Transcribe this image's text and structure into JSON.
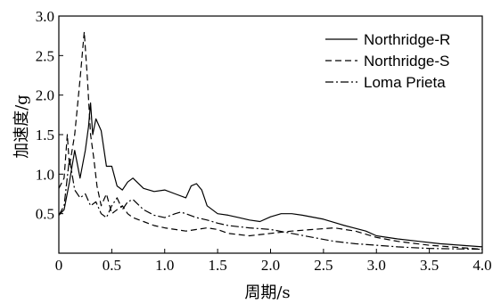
{
  "chart_data": {
    "type": "line",
    "xlabel": "周期/s",
    "ylabel": "加速度/g",
    "xlim": [
      0,
      4.0
    ],
    "ylim": [
      0,
      3.0
    ],
    "x_ticks": [
      "0",
      "0.5",
      "1.0",
      "1.5",
      "2.0",
      "2.5",
      "3.0",
      "3.5",
      "4.0"
    ],
    "y_ticks": [
      "0.5",
      "1.0",
      "1.5",
      "2.0",
      "2.5",
      "3.0"
    ],
    "grid": false,
    "legend_position": "top-right",
    "series": [
      {
        "name": "Northridge-R",
        "style": "solid",
        "x": [
          0.0,
          0.05,
          0.1,
          0.15,
          0.2,
          0.25,
          0.28,
          0.3,
          0.32,
          0.35,
          0.4,
          0.45,
          0.5,
          0.55,
          0.6,
          0.65,
          0.7,
          0.8,
          0.9,
          1.0,
          1.1,
          1.2,
          1.25,
          1.3,
          1.35,
          1.4,
          1.5,
          1.6,
          1.7,
          1.8,
          1.9,
          2.0,
          2.1,
          2.2,
          2.3,
          2.5,
          2.7,
          2.9,
          3.0,
          3.2,
          3.4,
          3.6,
          3.8,
          4.0
        ],
        "values": [
          0.48,
          0.55,
          0.9,
          1.3,
          0.95,
          1.3,
          1.6,
          1.9,
          1.5,
          1.7,
          1.55,
          1.1,
          1.1,
          0.85,
          0.8,
          0.9,
          0.95,
          0.82,
          0.78,
          0.8,
          0.75,
          0.7,
          0.85,
          0.88,
          0.8,
          0.6,
          0.5,
          0.48,
          0.45,
          0.42,
          0.4,
          0.46,
          0.5,
          0.5,
          0.48,
          0.43,
          0.35,
          0.28,
          0.22,
          0.18,
          0.15,
          0.12,
          0.1,
          0.08
        ]
      },
      {
        "name": "Northridge-S",
        "style": "dashed",
        "x": [
          0.0,
          0.05,
          0.08,
          0.1,
          0.15,
          0.2,
          0.24,
          0.27,
          0.3,
          0.33,
          0.36,
          0.4,
          0.45,
          0.5,
          0.55,
          0.6,
          0.65,
          0.7,
          0.8,
          0.9,
          1.0,
          1.1,
          1.2,
          1.3,
          1.4,
          1.5,
          1.6,
          1.8,
          2.0,
          2.2,
          2.4,
          2.6,
          2.8,
          3.0,
          3.2,
          3.5,
          3.8,
          4.0
        ],
        "values": [
          0.82,
          0.95,
          1.5,
          1.1,
          1.5,
          2.2,
          2.8,
          2.2,
          1.5,
          1.2,
          0.85,
          0.6,
          0.75,
          0.5,
          0.55,
          0.6,
          0.5,
          0.45,
          0.4,
          0.35,
          0.32,
          0.3,
          0.28,
          0.3,
          0.32,
          0.3,
          0.25,
          0.22,
          0.25,
          0.28,
          0.3,
          0.32,
          0.28,
          0.2,
          0.15,
          0.1,
          0.07,
          0.05
        ]
      },
      {
        "name": "Loma Prieta",
        "style": "dashdot",
        "x": [
          0.0,
          0.05,
          0.1,
          0.15,
          0.2,
          0.25,
          0.3,
          0.35,
          0.4,
          0.45,
          0.5,
          0.55,
          0.6,
          0.65,
          0.7,
          0.8,
          0.9,
          1.0,
          1.1,
          1.15,
          1.2,
          1.3,
          1.4,
          1.5,
          1.6,
          1.8,
          2.0,
          2.2,
          2.4,
          2.6,
          2.8,
          3.0,
          3.2,
          3.5,
          4.0
        ],
        "values": [
          0.48,
          0.6,
          1.2,
          0.8,
          0.7,
          0.75,
          0.6,
          0.65,
          0.5,
          0.45,
          0.6,
          0.7,
          0.55,
          0.65,
          0.68,
          0.55,
          0.48,
          0.45,
          0.5,
          0.52,
          0.5,
          0.45,
          0.42,
          0.38,
          0.35,
          0.32,
          0.3,
          0.25,
          0.2,
          0.15,
          0.12,
          0.1,
          0.08,
          0.06,
          0.05
        ]
      }
    ]
  }
}
